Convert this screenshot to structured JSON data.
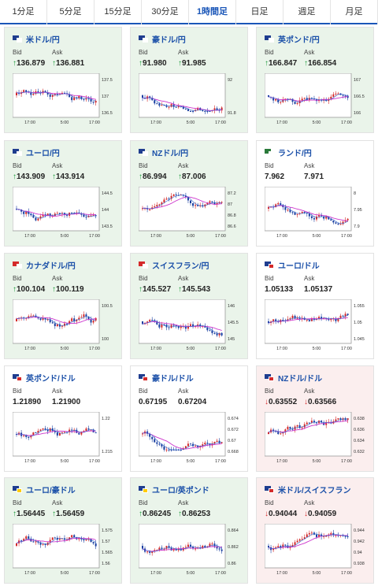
{
  "tabs": [
    {
      "label": "1分足",
      "active": false
    },
    {
      "label": "5分足",
      "active": false
    },
    {
      "label": "15分足",
      "active": false
    },
    {
      "label": "30分足",
      "active": false
    },
    {
      "label": "1時間足",
      "active": true
    },
    {
      "label": "日足",
      "active": false
    },
    {
      "label": "週足",
      "active": false
    },
    {
      "label": "月足",
      "active": false
    }
  ],
  "labels": {
    "bid": "Bid",
    "ask": "Ask"
  },
  "colors": {
    "up": "#1b9b3a",
    "down": "#d42a2a",
    "candle_up": "#d42a2a",
    "candle_down": "#1a3fa0",
    "ma1": "#cc33cc",
    "ma2": "#3366cc",
    "pair": "#1a4fa8"
  },
  "cards": [
    {
      "pair": "米ドル/円",
      "flag": [
        "#1f3d8f",
        "#ffffff"
      ],
      "trend": "up",
      "bid": "136.879",
      "ask": "136.881",
      "y_ticks": [
        "137.5",
        "137",
        "136.5"
      ],
      "x_ticks": [
        "17:00",
        "5:00",
        "17:00"
      ]
    },
    {
      "pair": "豪ドル/円",
      "flag": [
        "#1f3d8f",
        "#ffffff"
      ],
      "trend": "up",
      "bid": "91.980",
      "ask": "91.985",
      "y_ticks": [
        "92",
        "91.8"
      ],
      "x_ticks": [
        "17:00",
        "5:00",
        "17:00"
      ]
    },
    {
      "pair": "英ポンド/円",
      "flag": [
        "#1f3d8f",
        "#ffffff"
      ],
      "trend": "up",
      "bid": "166.847",
      "ask": "166.854",
      "y_ticks": [
        "167",
        "166.5",
        "166"
      ],
      "x_ticks": [
        "17:00",
        "5:00",
        "17:00"
      ]
    },
    {
      "pair": "ユーロ/円",
      "flag": [
        "#1f3d8f",
        "#ffffff"
      ],
      "trend": "up",
      "bid": "143.909",
      "ask": "143.914",
      "y_ticks": [
        "144.5",
        "144",
        "143.5"
      ],
      "x_ticks": [
        "17:00",
        "5:00",
        "17:00"
      ]
    },
    {
      "pair": "NZドル/円",
      "flag": [
        "#1f3d8f",
        "#ffffff"
      ],
      "trend": "up",
      "bid": "86.994",
      "ask": "87.006",
      "y_ticks": [
        "87.2",
        "87",
        "86.8",
        "86.6"
      ],
      "x_ticks": [
        "17:00",
        "5:00",
        "17:00"
      ]
    },
    {
      "pair": "ランド/円",
      "flag": [
        "#2a7a3a",
        "#ffffff"
      ],
      "trend": "flat",
      "bid": "7.962",
      "ask": "7.971",
      "y_ticks": [
        "8",
        "7.95",
        "7.9"
      ],
      "x_ticks": [
        "17:00",
        "5:00",
        "17:00"
      ]
    },
    {
      "pair": "カナダドル/円",
      "flag": [
        "#d42a2a",
        "#ffffff"
      ],
      "trend": "up",
      "bid": "100.104",
      "ask": "100.119",
      "y_ticks": [
        "100.5",
        "100"
      ],
      "x_ticks": [
        "17:00",
        "5:00",
        "17:00"
      ]
    },
    {
      "pair": "スイスフラン/円",
      "flag": [
        "#d42a2a",
        "#ffffff"
      ],
      "trend": "up",
      "bid": "145.527",
      "ask": "145.543",
      "y_ticks": [
        "146",
        "145.5",
        "145"
      ],
      "x_ticks": [
        "17:00",
        "5:00",
        "17:00"
      ]
    },
    {
      "pair": "ユーロ/ドル",
      "flag": [
        "#1f3d8f",
        "#d42a2a"
      ],
      "trend": "flat",
      "bid": "1.05133",
      "ask": "1.05137",
      "y_ticks": [
        "1.055",
        "1.05",
        "1.045"
      ],
      "x_ticks": [
        "17:00",
        "5:00",
        "17:00"
      ]
    },
    {
      "pair": "英ポンド/ドル",
      "flag": [
        "#1f3d8f",
        "#d42a2a"
      ],
      "trend": "flat",
      "bid": "1.21890",
      "ask": "1.21900",
      "y_ticks": [
        "1.22",
        "1.215"
      ],
      "x_ticks": [
        "17:00",
        "5:00",
        "17:00"
      ]
    },
    {
      "pair": "豪ドル/ドル",
      "flag": [
        "#1f3d8f",
        "#d42a2a"
      ],
      "trend": "flat",
      "bid": "0.67195",
      "ask": "0.67204",
      "y_ticks": [
        "0.674",
        "0.672",
        "0.67",
        "0.668"
      ],
      "x_ticks": [
        "17:00",
        "5:00",
        "17:00"
      ]
    },
    {
      "pair": "NZドル/ドル",
      "flag": [
        "#1f3d8f",
        "#d42a2a"
      ],
      "trend": "down",
      "bid": "0.63552",
      "ask": "0.63566",
      "y_ticks": [
        "0.638",
        "0.636",
        "0.634",
        "0.632"
      ],
      "x_ticks": [
        "17:00",
        "5:00",
        "17:00"
      ]
    },
    {
      "pair": "ユーロ/豪ドル",
      "flag": [
        "#1f3d8f",
        "#ffcc00"
      ],
      "trend": "up",
      "bid": "1.56445",
      "ask": "1.56459",
      "y_ticks": [
        "1.575",
        "1.57",
        "1.565",
        "1.56"
      ],
      "x_ticks": [
        "17:00",
        "5:00",
        "17:00"
      ]
    },
    {
      "pair": "ユーロ/英ポンド",
      "flag": [
        "#1f3d8f",
        "#ffcc00"
      ],
      "trend": "up",
      "bid": "0.86245",
      "ask": "0.86253",
      "y_ticks": [
        "0.864",
        "0.862",
        "0.86"
      ],
      "x_ticks": [
        "17:00",
        "5:00",
        "17:00"
      ]
    },
    {
      "pair": "米ドル/スイスフラン",
      "flag": [
        "#1f3d8f",
        "#d42a2a"
      ],
      "trend": "down",
      "bid": "0.94044",
      "ask": "0.94059",
      "y_ticks": [
        "0.944",
        "0.942",
        "0.94",
        "0.938"
      ],
      "x_ticks": [
        "17:00",
        "5:00",
        "17:00"
      ]
    }
  ]
}
